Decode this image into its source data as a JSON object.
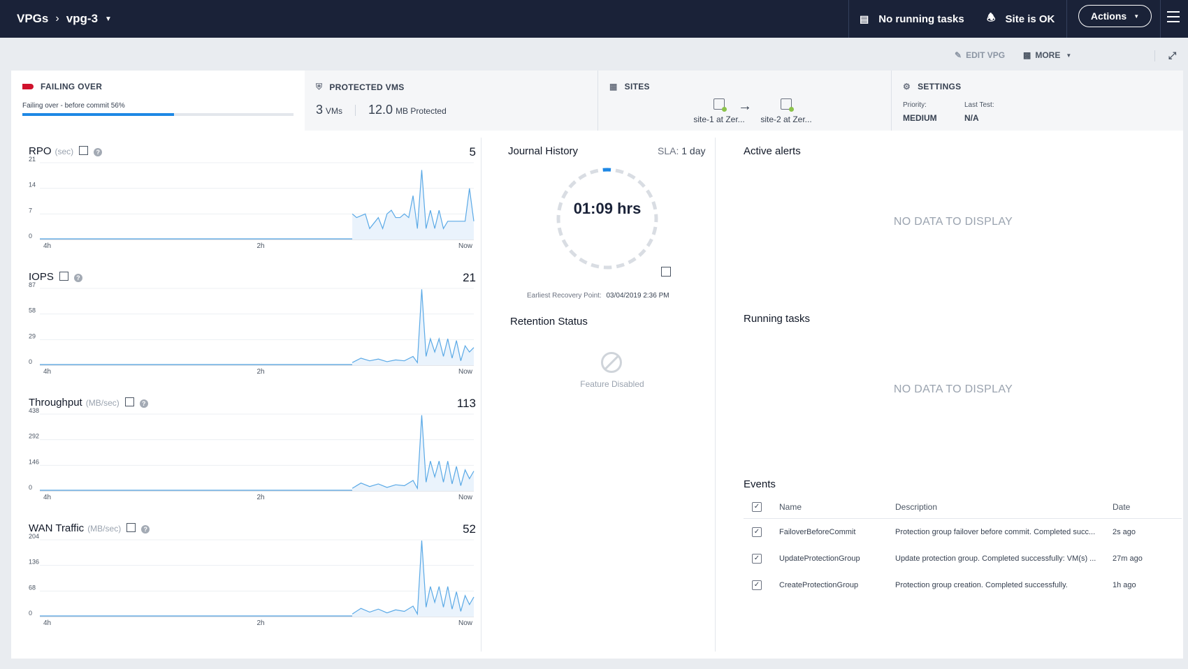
{
  "topbar": {
    "crumb_root": "VPGs",
    "crumb_current": "vpg-3",
    "tasks_status": "No running tasks",
    "site_status": "Site is OK",
    "actions_label": "Actions"
  },
  "toolbar": {
    "edit_label": "EDIT VPG",
    "more_label": "MORE"
  },
  "cards": {
    "failing": {
      "title": "FAILING OVER",
      "subtitle": "Failing over - before commit 56%",
      "progress_percent": 56,
      "flag_color": "#d0122c"
    },
    "protected": {
      "title": "PROTECTED VMS",
      "vm_count": "3",
      "vm_unit": "VMs",
      "size": "12.0",
      "size_unit": "MB Protected"
    },
    "sites": {
      "title": "SITES",
      "source": "site-1 at Zer...",
      "target": "site-2 at Zer..."
    },
    "settings": {
      "title": "SETTINGS",
      "priority_label": "Priority:",
      "priority_value": "MEDIUM",
      "last_test_label": "Last Test:",
      "last_test_value": "N/A"
    }
  },
  "charts": {
    "rpo": {
      "title": "RPO",
      "unit": "(sec)",
      "current": "5"
    },
    "iops": {
      "title": "IOPS",
      "unit": "",
      "current": "21"
    },
    "throughput": {
      "title": "Throughput",
      "unit": "(MB/sec)",
      "current": "113"
    },
    "wan": {
      "title": "WAN Traffic",
      "unit": "(MB/sec)",
      "current": "52"
    }
  },
  "chart_data": [
    {
      "type": "area",
      "title": "RPO",
      "ylabel": "(sec)",
      "ylim": [
        0,
        21
      ],
      "yticks": [
        "0",
        "7",
        "14",
        "21"
      ],
      "xticks": [
        "4h",
        "2h",
        "Now"
      ],
      "x": [
        0.72,
        0.73,
        0.75,
        0.76,
        0.78,
        0.79,
        0.8,
        0.81,
        0.82,
        0.83,
        0.84,
        0.85,
        0.86,
        0.87,
        0.88,
        0.89,
        0.9,
        0.91,
        0.92,
        0.93,
        0.94,
        0.95,
        0.96,
        0.97,
        0.98,
        0.99,
        1.0
      ],
      "values": [
        7,
        6,
        7,
        3,
        6,
        3,
        7,
        8,
        6,
        6,
        7,
        6,
        12,
        3,
        19,
        3,
        8,
        3,
        8,
        3,
        5,
        5,
        5,
        5,
        5,
        14,
        5
      ]
    },
    {
      "type": "area",
      "title": "IOPS",
      "ylim": [
        0,
        87
      ],
      "yticks": [
        "0",
        "29",
        "58",
        "87"
      ],
      "xticks": [
        "4h",
        "2h",
        "Now"
      ],
      "x": [
        0.72,
        0.74,
        0.76,
        0.78,
        0.8,
        0.82,
        0.84,
        0.86,
        0.87,
        0.88,
        0.89,
        0.9,
        0.91,
        0.92,
        0.93,
        0.94,
        0.95,
        0.96,
        0.97,
        0.98,
        0.99,
        1.0
      ],
      "values": [
        3,
        8,
        5,
        7,
        4,
        6,
        5,
        10,
        3,
        86,
        10,
        30,
        15,
        30,
        10,
        30,
        8,
        28,
        5,
        22,
        15,
        20
      ]
    },
    {
      "type": "area",
      "title": "Throughput",
      "ylabel": "(MB/sec)",
      "ylim": [
        0,
        438
      ],
      "yticks": [
        "0",
        "146",
        "292",
        "438"
      ],
      "xticks": [
        "4h",
        "2h",
        "Now"
      ],
      "x": [
        0.72,
        0.74,
        0.76,
        0.78,
        0.8,
        0.82,
        0.84,
        0.86,
        0.87,
        0.88,
        0.89,
        0.9,
        0.91,
        0.92,
        0.93,
        0.94,
        0.95,
        0.96,
        0.97,
        0.98,
        0.99,
        1.0
      ],
      "values": [
        15,
        45,
        25,
        40,
        20,
        35,
        30,
        60,
        15,
        432,
        50,
        170,
        80,
        170,
        50,
        170,
        40,
        140,
        30,
        120,
        70,
        113
      ]
    },
    {
      "type": "area",
      "title": "WAN Traffic",
      "ylabel": "(MB/sec)",
      "ylim": [
        0,
        204
      ],
      "yticks": [
        "0",
        "68",
        "136",
        "204"
      ],
      "xticks": [
        "4h",
        "2h",
        "Now"
      ],
      "x": [
        0.72,
        0.74,
        0.76,
        0.78,
        0.8,
        0.82,
        0.84,
        0.86,
        0.87,
        0.88,
        0.89,
        0.9,
        0.91,
        0.92,
        0.93,
        0.94,
        0.95,
        0.96,
        0.97,
        0.98,
        0.99,
        1.0
      ],
      "values": [
        7,
        22,
        12,
        20,
        10,
        18,
        14,
        28,
        7,
        202,
        25,
        80,
        38,
        80,
        25,
        80,
        20,
        66,
        14,
        56,
        32,
        52
      ]
    }
  ],
  "journal": {
    "title": "Journal History",
    "sla_label": "SLA:",
    "sla_value": "1 day",
    "duration": "01:09 hrs",
    "fill_fraction": 0.04,
    "erp_label": "Earliest Recovery Point:",
    "erp_value": "03/04/2019 2:36 PM",
    "retention_title": "Retention Status",
    "retention_status": "Feature Disabled"
  },
  "alerts": {
    "title": "Active alerts",
    "empty": "NO DATA TO DISPLAY"
  },
  "running": {
    "title": "Running tasks",
    "empty": "NO DATA TO DISPLAY"
  },
  "events": {
    "title": "Events",
    "headers": {
      "name": "Name",
      "description": "Description",
      "date": "Date"
    },
    "rows": [
      {
        "name": "FailoverBeforeCommit",
        "description": "Protection group failover before commit. Completed succ...",
        "date": "2s ago"
      },
      {
        "name": "UpdateProtectionGroup",
        "description": "Update protection group. Completed successfully: VM(s) ...",
        "date": "27m ago"
      },
      {
        "name": "CreateProtectionGroup",
        "description": "Protection group creation. Completed successfully.",
        "date": "1h ago"
      }
    ]
  },
  "colors": {
    "accent": "#1e88e5",
    "nav": "#1a2238",
    "fail": "#d0122c",
    "chart_line": "#5aa9e6"
  }
}
